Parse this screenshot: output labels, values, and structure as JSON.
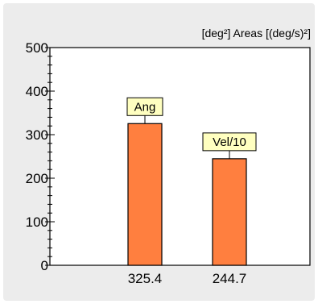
{
  "chart_data": {
    "type": "bar",
    "title": "[deg²] Areas [(deg/s)²]",
    "categories": [
      "325.4",
      "244.7"
    ],
    "values": [
      325.4,
      244.7
    ],
    "bar_labels": [
      "Ang",
      "Vel/10"
    ],
    "ylim": [
      0,
      500
    ],
    "y_ticks": [
      "0",
      "100",
      "200",
      "300",
      "400",
      "500"
    ],
    "xlabel": "",
    "ylabel": "",
    "grid": false,
    "colors": {
      "bar_fill": "#ff7f3f",
      "bar_stroke": "#000000",
      "label_fill": "#ffffc0",
      "plot_background": "#ffffff",
      "panel_background": "#ececec"
    }
  }
}
